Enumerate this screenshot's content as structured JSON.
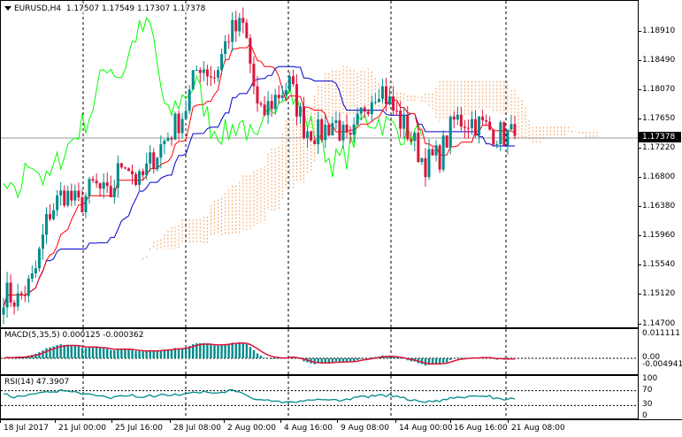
{
  "main": {
    "symbol": "EURUSD,H4",
    "ohlc": "1.17507 1.17549 1.17307 1.17378",
    "price_ticks": [
      "1.18910",
      "1.18490",
      "1.18070",
      "1.17650",
      "1.17220",
      "1.16800",
      "1.16380",
      "1.15960",
      "1.15540",
      "1.15120",
      "1.14700"
    ],
    "current_price": "1.17378",
    "colors": {
      "bull": "#008b8b",
      "bear": "#dc143c",
      "tenkan": "#ff0000",
      "kijun": "#0000cd",
      "chikou": "#00ff00",
      "cloud": "#f4a460",
      "grid": "#000000"
    }
  },
  "macd": {
    "title": "MACD(5,35,5) 0.000125 -0.000362",
    "ticks": [
      "0.011111",
      "0.00",
      "-0.004941"
    ],
    "colors": {
      "hist": "#008b8b",
      "signal": "#dc143c"
    }
  },
  "rsi": {
    "title": "RSI(14) 47.3907",
    "ticks": [
      "100",
      "70",
      "30",
      "0"
    ],
    "color": "#008b8b"
  },
  "time_labels": [
    "18 Jul 2017",
    "21 Jul 00:00",
    "25 Jul 16:00",
    "28 Jul 08:00",
    "2 Aug 00:00",
    "4 Aug 16:00",
    "9 Aug 08:00",
    "14 Aug 00:00",
    "16 Aug 16:00",
    "21 Aug 08:00"
  ],
  "chart_data": {
    "type": "candlestick",
    "title": "EURUSD,H4",
    "ylim": [
      1.147,
      1.1925
    ],
    "x": [
      "18 Jul 2017",
      "21 Jul 00:00",
      "25 Jul 16:00",
      "28 Jul 08:00",
      "2 Aug 00:00",
      "4 Aug 16:00",
      "9 Aug 08:00",
      "14 Aug 00:00",
      "16 Aug 16:00",
      "21 Aug 08:00"
    ],
    "close_path": [
      1.152,
      1.151,
      1.154,
      1.163,
      1.166,
      1.164,
      1.167,
      1.165,
      1.171,
      1.167,
      1.171,
      1.174,
      1.177,
      1.184,
      1.182,
      1.188,
      1.189,
      1.176,
      1.179,
      1.181,
      1.175,
      1.174,
      1.176,
      1.172,
      1.178,
      1.181,
      1.177,
      1.174,
      1.17,
      1.171,
      1.176,
      1.176,
      1.175,
      1.174,
      1.1738
    ],
    "rsi_levels": [
      70,
      30
    ],
    "rsi_last": 47.3907,
    "macd_last": 0.000125,
    "macd_signal_last": -0.000362
  }
}
